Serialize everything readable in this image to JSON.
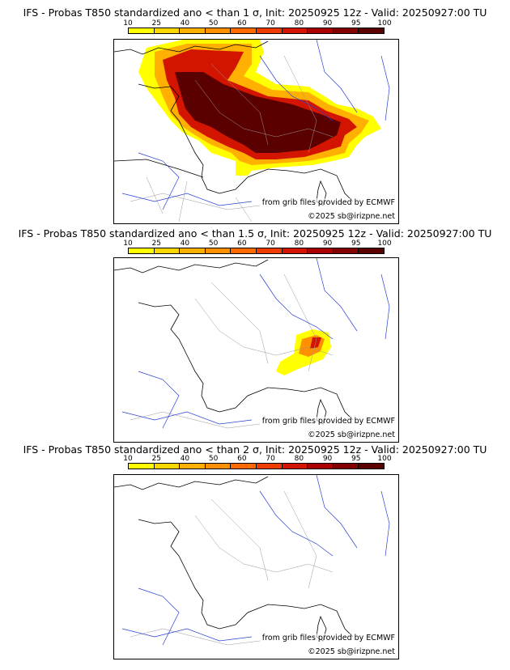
{
  "panels": [
    {
      "title": "IFS - Probas T850  standardized ano < than 1 σ, Init: 20250925 12z - Valid: 20250927:00 TU"
    },
    {
      "title": "IFS - Probas T850  standardized ano < than 1.5 σ, Init: 20250925 12z - Valid: 20250927:00 TU"
    },
    {
      "title": "IFS - Probas T850  standardized ano < than 2 σ, Init: 20250925 12z - Valid: 20250927:00 TU"
    }
  ],
  "colorbar": {
    "ticks": [
      "10",
      "25",
      "40",
      "50",
      "60",
      "70",
      "80",
      "90",
      "95",
      "100"
    ],
    "colors": [
      "#ffff00",
      "#ffd700",
      "#ffb000",
      "#ff9000",
      "#ff6a00",
      "#f03c00",
      "#d21400",
      "#aa0000",
      "#820000",
      "#5a0000"
    ]
  },
  "credits": {
    "source": "from grib files provided by ECMWF",
    "copyright": "©2025 sb@irizpne.net"
  }
}
